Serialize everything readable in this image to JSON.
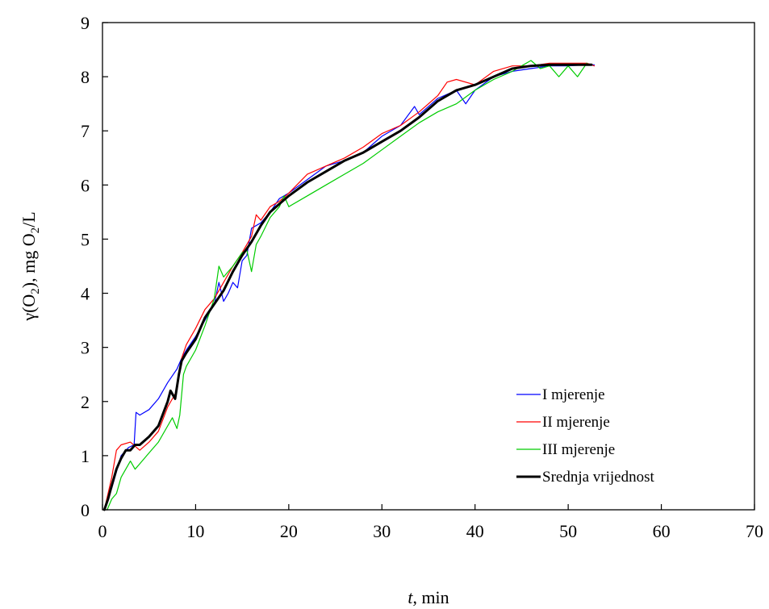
{
  "chart_data": {
    "type": "line",
    "xlabel": {
      "italic": "t",
      "rest": ", min"
    },
    "ylabel": {
      "prefix": "γ(O",
      "sub": "2",
      "mid": "), mg  O",
      "sub2": "2",
      "suffix": "/L"
    },
    "xlim": [
      0,
      70
    ],
    "ylim": [
      0,
      9
    ],
    "xticks": [
      0,
      10,
      20,
      30,
      40,
      50,
      60,
      70
    ],
    "yticks": [
      0,
      1,
      2,
      3,
      4,
      5,
      6,
      7,
      8,
      9
    ],
    "grid": false,
    "legend_position": "bottom-right",
    "series": [
      {
        "name": "I mjerenje",
        "color": "#0000ff",
        "width": 1.2,
        "points": [
          [
            0.2,
            0
          ],
          [
            0.5,
            0.2
          ],
          [
            1,
            0.4
          ],
          [
            1.5,
            0.7
          ],
          [
            2,
            1.0
          ],
          [
            2.8,
            1.15
          ],
          [
            3.4,
            1.2
          ],
          [
            3.6,
            1.8
          ],
          [
            4,
            1.75
          ],
          [
            5,
            1.85
          ],
          [
            6,
            2.05
          ],
          [
            7,
            2.35
          ],
          [
            8,
            2.6
          ],
          [
            8.5,
            2.8
          ],
          [
            9,
            2.95
          ],
          [
            10,
            3.2
          ],
          [
            11,
            3.5
          ],
          [
            12,
            3.8
          ],
          [
            12.5,
            4.2
          ],
          [
            13,
            3.85
          ],
          [
            13.5,
            4.0
          ],
          [
            14,
            4.2
          ],
          [
            14.5,
            4.1
          ],
          [
            15,
            4.6
          ],
          [
            15.5,
            4.7
          ],
          [
            16,
            5.2
          ],
          [
            17,
            5.3
          ],
          [
            18,
            5.5
          ],
          [
            19,
            5.75
          ],
          [
            20,
            5.85
          ],
          [
            22,
            6.1
          ],
          [
            24,
            6.35
          ],
          [
            26,
            6.45
          ],
          [
            28,
            6.6
          ],
          [
            29,
            6.75
          ],
          [
            30,
            6.9
          ],
          [
            32,
            7.1
          ],
          [
            33.5,
            7.45
          ],
          [
            34,
            7.3
          ],
          [
            36,
            7.6
          ],
          [
            38,
            7.75
          ],
          [
            39,
            7.5
          ],
          [
            40,
            7.75
          ],
          [
            42,
            8.0
          ],
          [
            44,
            8.1
          ],
          [
            46,
            8.15
          ],
          [
            48,
            8.2
          ],
          [
            50,
            8.2
          ],
          [
            52,
            8.22
          ],
          [
            52.8,
            8.22
          ]
        ]
      },
      {
        "name": "II mjerenje",
        "color": "#ff0000",
        "width": 1.2,
        "points": [
          [
            0.2,
            0
          ],
          [
            0.6,
            0.3
          ],
          [
            1,
            0.6
          ],
          [
            1.5,
            1.1
          ],
          [
            2,
            1.2
          ],
          [
            3,
            1.25
          ],
          [
            4,
            1.1
          ],
          [
            5,
            1.25
          ],
          [
            6,
            1.45
          ],
          [
            7,
            1.9
          ],
          [
            8,
            2.2
          ],
          [
            8.5,
            2.8
          ],
          [
            9,
            3.05
          ],
          [
            10,
            3.35
          ],
          [
            11,
            3.7
          ],
          [
            12,
            3.9
          ],
          [
            13,
            4.2
          ],
          [
            14,
            4.5
          ],
          [
            15,
            4.75
          ],
          [
            16,
            5.05
          ],
          [
            16.5,
            5.45
          ],
          [
            17,
            5.35
          ],
          [
            18,
            5.6
          ],
          [
            19,
            5.7
          ],
          [
            20,
            5.85
          ],
          [
            22,
            6.2
          ],
          [
            24,
            6.35
          ],
          [
            26,
            6.5
          ],
          [
            28,
            6.7
          ],
          [
            30,
            6.95
          ],
          [
            32,
            7.1
          ],
          [
            34,
            7.35
          ],
          [
            36,
            7.65
          ],
          [
            37,
            7.9
          ],
          [
            38,
            7.95
          ],
          [
            40,
            7.85
          ],
          [
            42,
            8.1
          ],
          [
            44,
            8.2
          ],
          [
            46,
            8.2
          ],
          [
            48,
            8.25
          ],
          [
            50,
            8.25
          ],
          [
            52,
            8.25
          ],
          [
            52.8,
            8.2
          ]
        ]
      },
      {
        "name": "III mjerenje",
        "color": "#00cc00",
        "width": 1.2,
        "points": [
          [
            0.5,
            0
          ],
          [
            1,
            0.2
          ],
          [
            1.5,
            0.3
          ],
          [
            2,
            0.6
          ],
          [
            3,
            0.9
          ],
          [
            3.5,
            0.75
          ],
          [
            4,
            0.85
          ],
          [
            5,
            1.05
          ],
          [
            6,
            1.25
          ],
          [
            7,
            1.55
          ],
          [
            7.5,
            1.7
          ],
          [
            8,
            1.5
          ],
          [
            8.3,
            1.75
          ],
          [
            8.7,
            2.5
          ],
          [
            9,
            2.65
          ],
          [
            10,
            2.95
          ],
          [
            11,
            3.4
          ],
          [
            12,
            3.9
          ],
          [
            12.5,
            4.5
          ],
          [
            13,
            4.3
          ],
          [
            14,
            4.5
          ],
          [
            15,
            4.75
          ],
          [
            15.5,
            4.8
          ],
          [
            16,
            4.4
          ],
          [
            16.5,
            4.9
          ],
          [
            17,
            5.05
          ],
          [
            18,
            5.4
          ],
          [
            19,
            5.6
          ],
          [
            19.5,
            5.8
          ],
          [
            20,
            5.6
          ],
          [
            22,
            5.8
          ],
          [
            24,
            6.0
          ],
          [
            26,
            6.2
          ],
          [
            28,
            6.4
          ],
          [
            30,
            6.65
          ],
          [
            32,
            6.9
          ],
          [
            34,
            7.15
          ],
          [
            36,
            7.35
          ],
          [
            38,
            7.5
          ],
          [
            40,
            7.75
          ],
          [
            42,
            7.95
          ],
          [
            44,
            8.1
          ],
          [
            45,
            8.2
          ],
          [
            46,
            8.3
          ],
          [
            47,
            8.15
          ],
          [
            48,
            8.2
          ],
          [
            49,
            8.0
          ],
          [
            50,
            8.2
          ],
          [
            51,
            8.0
          ],
          [
            52,
            8.25
          ]
        ]
      },
      {
        "name": "Srednja vrijednost",
        "color": "#000000",
        "width": 3,
        "points": [
          [
            0.2,
            0
          ],
          [
            0.6,
            0.2
          ],
          [
            1,
            0.45
          ],
          [
            1.5,
            0.75
          ],
          [
            2,
            0.95
          ],
          [
            2.5,
            1.1
          ],
          [
            3,
            1.1
          ],
          [
            3.5,
            1.2
          ],
          [
            4,
            1.2
          ],
          [
            5,
            1.35
          ],
          [
            6,
            1.55
          ],
          [
            7,
            2.0
          ],
          [
            7.3,
            2.2
          ],
          [
            7.8,
            2.05
          ],
          [
            8.2,
            2.5
          ],
          [
            8.5,
            2.75
          ],
          [
            9,
            2.9
          ],
          [
            10,
            3.15
          ],
          [
            11,
            3.55
          ],
          [
            12,
            3.8
          ],
          [
            13,
            4.05
          ],
          [
            14,
            4.4
          ],
          [
            15,
            4.7
          ],
          [
            16,
            4.95
          ],
          [
            17,
            5.25
          ],
          [
            18,
            5.5
          ],
          [
            19,
            5.65
          ],
          [
            20,
            5.8
          ],
          [
            22,
            6.05
          ],
          [
            24,
            6.25
          ],
          [
            26,
            6.45
          ],
          [
            28,
            6.6
          ],
          [
            30,
            6.8
          ],
          [
            32,
            7.0
          ],
          [
            34,
            7.25
          ],
          [
            36,
            7.55
          ],
          [
            38,
            7.75
          ],
          [
            40,
            7.85
          ],
          [
            42,
            8.0
          ],
          [
            44,
            8.15
          ],
          [
            46,
            8.2
          ],
          [
            48,
            8.22
          ],
          [
            50,
            8.22
          ],
          [
            52,
            8.22
          ],
          [
            52.5,
            8.22
          ]
        ]
      }
    ]
  }
}
